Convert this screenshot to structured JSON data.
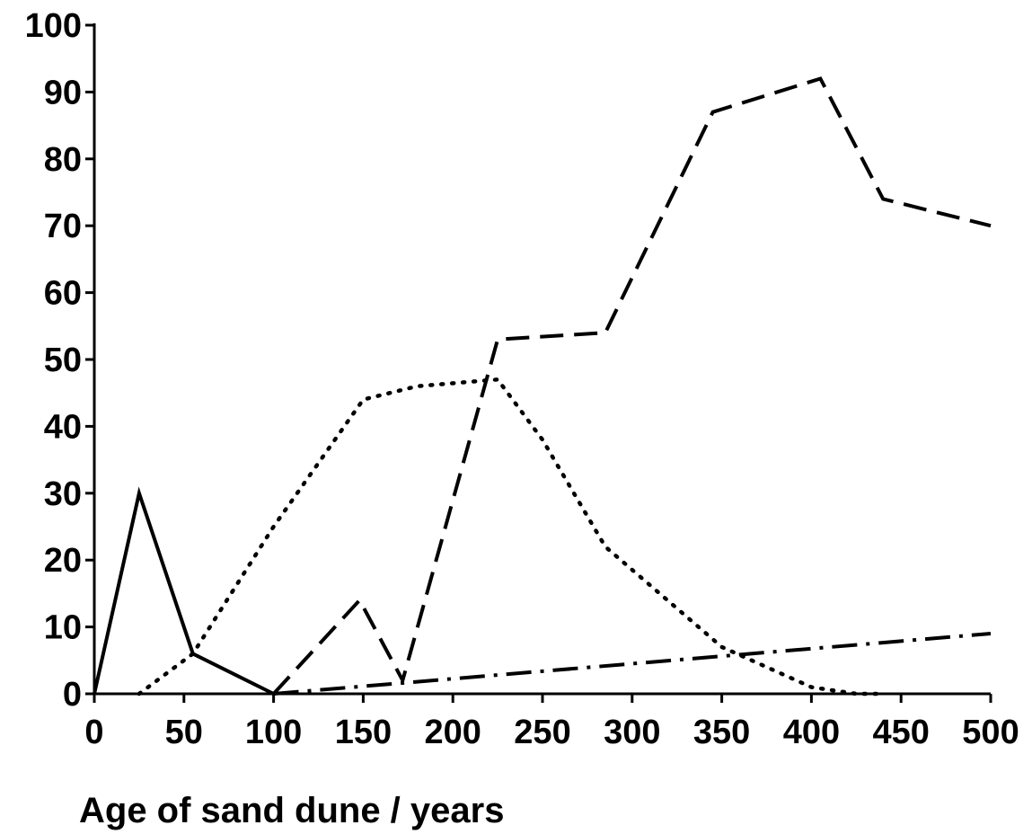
{
  "chart_data": {
    "type": "line",
    "title": "",
    "xlabel": "Age of sand dune / years",
    "ylabel": "",
    "xlim": [
      0,
      500
    ],
    "ylim": [
      0,
      100
    ],
    "x_ticks": [
      0,
      50,
      100,
      150,
      200,
      250,
      300,
      350,
      400,
      450,
      500
    ],
    "y_ticks": [
      0,
      10,
      20,
      30,
      40,
      50,
      60,
      70,
      80,
      90,
      100
    ],
    "grid": false,
    "legend": "none",
    "series": [
      {
        "style": "solid",
        "color": "#000000",
        "points": [
          [
            0,
            0
          ],
          [
            25,
            30
          ],
          [
            55,
            6
          ],
          [
            100,
            0
          ]
        ]
      },
      {
        "style": "dotted",
        "color": "#000000",
        "points": [
          [
            25,
            0
          ],
          [
            55,
            6
          ],
          [
            100,
            25
          ],
          [
            150,
            44
          ],
          [
            180,
            46
          ],
          [
            225,
            47
          ],
          [
            250,
            38
          ],
          [
            285,
            22
          ],
          [
            350,
            7
          ],
          [
            400,
            1
          ],
          [
            425,
            0
          ],
          [
            440,
            0
          ]
        ]
      },
      {
        "style": "dashed",
        "color": "#000000",
        "points": [
          [
            100,
            0
          ],
          [
            148,
            14
          ],
          [
            172,
            2
          ],
          [
            225,
            53
          ],
          [
            285,
            54
          ],
          [
            345,
            87
          ],
          [
            405,
            92
          ],
          [
            440,
            74
          ],
          [
            500,
            70
          ]
        ]
      },
      {
        "style": "dashdot",
        "color": "#000000",
        "points": [
          [
            100,
            0
          ],
          [
            500,
            9
          ]
        ]
      }
    ]
  }
}
